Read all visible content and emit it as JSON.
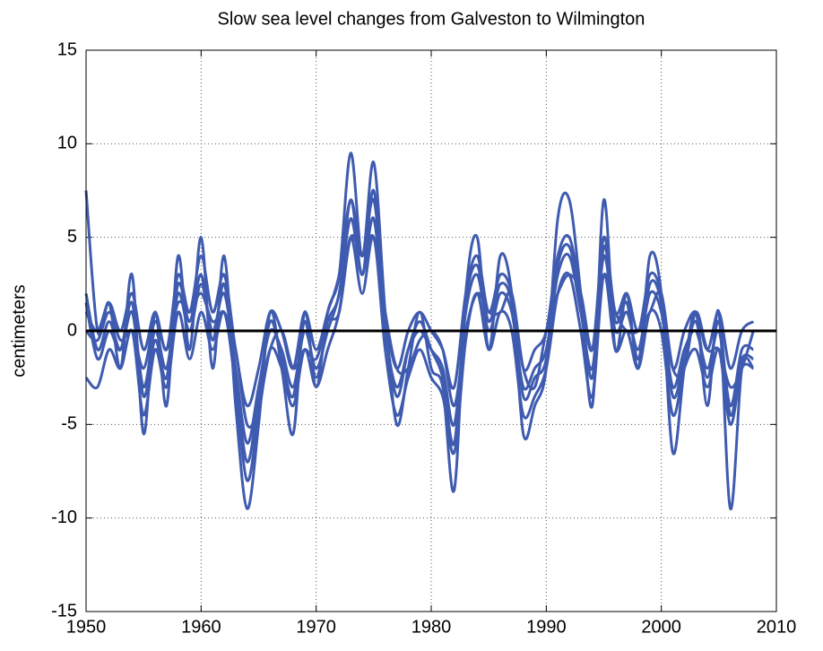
{
  "chart_data": {
    "type": "line",
    "title": "Slow sea level changes from Galveston to Wilmington",
    "y_label": "centimeters",
    "x": [
      1950,
      1951,
      1952,
      1953,
      1954,
      1955,
      1956,
      1957,
      1958,
      1959,
      1960,
      1961,
      1962,
      1963,
      1964,
      1965,
      1966,
      1967,
      1968,
      1969,
      1970,
      1971,
      1972,
      1973,
      1974,
      1975,
      1976,
      1977,
      1978,
      1979,
      1980,
      1981,
      1982,
      1983,
      1984,
      1985,
      1986,
      1987,
      1988,
      1989,
      1990,
      1991,
      1992,
      1993,
      1994,
      1995,
      1996,
      1997,
      1998,
      1999,
      2000,
      2001,
      2002,
      2003,
      2004,
      2005,
      2006,
      2007,
      2008
    ],
    "series": [
      {
        "color": "#3f5bb0",
        "values": [
          2,
          -1,
          0.5,
          -1,
          1,
          -3,
          0,
          -2,
          2,
          0,
          2.5,
          0,
          2,
          -2,
          -6,
          -3,
          0,
          -1,
          -3,
          0,
          -2,
          0,
          2,
          6,
          3,
          6,
          0,
          -3,
          -1,
          0,
          -1,
          -2,
          -5,
          1,
          3,
          0,
          2,
          1,
          -3,
          -2,
          -1,
          3,
          4,
          1,
          -2,
          4,
          0,
          1,
          -1,
          2,
          1,
          -3,
          -1,
          0,
          -2,
          0,
          -4,
          -1,
          -1
        ]
      },
      {
        "color": "#3f5bb0",
        "values": [
          7.5,
          0,
          1.5,
          -2,
          3,
          -5.5,
          1,
          -4,
          4,
          -1,
          5,
          -2,
          4,
          -4,
          -9.5,
          -5,
          1,
          -2,
          -5.5,
          1,
          -3,
          1,
          3,
          9.5,
          4,
          9,
          1,
          -5,
          -2,
          1,
          -2,
          -3,
          -8.5,
          2,
          5,
          -1,
          4,
          2,
          -5.5,
          -4,
          -2,
          6,
          7,
          2,
          -4,
          7,
          -1,
          2,
          -2,
          4,
          2,
          -6.5,
          -2,
          1,
          -4,
          1,
          -9.5,
          -2,
          -2
        ]
      },
      {
        "color": "#3f5bb0",
        "values": [
          1,
          0,
          1.5,
          0,
          2,
          -1,
          1,
          -1,
          3,
          1,
          4,
          1,
          3,
          -1,
          -4,
          -2,
          1,
          0,
          -2,
          1,
          -1,
          1,
          3,
          7,
          4,
          7,
          1,
          -2,
          0,
          1,
          0,
          -1,
          -3,
          2,
          4,
          1,
          3,
          2,
          -2,
          -1,
          0,
          4,
          5,
          2,
          -1,
          5,
          1,
          2,
          0,
          3,
          2,
          -2,
          0,
          1,
          -1,
          1,
          -2,
          0,
          0.5
        ]
      },
      {
        "color": "#3f5bb0",
        "values": [
          -2.5,
          -3,
          -1,
          -2,
          0,
          -4.5,
          -1,
          -3,
          1,
          -1.5,
          1,
          -1,
          1,
          -3,
          -8,
          -4.5,
          -1,
          -2,
          -4,
          -1,
          -3,
          -1,
          1,
          5,
          2,
          5,
          -1,
          -4.5,
          -2.5,
          -1,
          -2.5,
          -3.5,
          -6.5,
          -0.5,
          2,
          -1,
          1,
          0,
          -4.5,
          -3.5,
          -2,
          2,
          3,
          0,
          -3.5,
          3,
          -1,
          0,
          -2,
          1,
          0,
          -4.5,
          -2,
          -1,
          -3,
          -1,
          -5,
          -2,
          -2
        ]
      },
      {
        "color": "#3f5bb0",
        "values": [
          0,
          -0.5,
          1,
          -0.5,
          0,
          -2,
          0.5,
          -1,
          1.5,
          1,
          2,
          0.5,
          1,
          -1,
          -5,
          -4,
          -1,
          0,
          -2,
          -1,
          -1.5,
          0.5,
          1,
          5,
          4,
          5,
          1,
          -2,
          -2,
          -0.5,
          0,
          -1,
          -4,
          0,
          2,
          1,
          1,
          2,
          -2,
          -3,
          0,
          2,
          3,
          2,
          -1,
          3,
          1,
          0,
          0,
          1,
          2,
          -2,
          -2,
          1,
          -1,
          -1,
          -3,
          -2,
          0
        ]
      },
      {
        "color": "#3f5bb0",
        "values": [
          1.5,
          -1.5,
          0,
          -1,
          1.5,
          -3.5,
          -0.5,
          -2.5,
          2.5,
          0.5,
          3,
          -0.5,
          2.5,
          -2.5,
          -7,
          -3.5,
          0.5,
          -1.5,
          -3.5,
          0.5,
          -2.5,
          0.5,
          2,
          7,
          3,
          7.5,
          0.5,
          -3.5,
          -1,
          0.5,
          -1,
          -2.5,
          -6,
          1.5,
          3.5,
          0.5,
          2.5,
          1.5,
          -3.5,
          -2.5,
          -1.5,
          3.5,
          4.5,
          1.5,
          -2.5,
          4.5,
          0.5,
          1.5,
          -1.5,
          2.5,
          1.5,
          -3.5,
          -1.5,
          0.5,
          -2.5,
          0.5,
          -4.5,
          -1.5,
          -1.5
        ]
      }
    ],
    "hlines": [
      0
    ],
    "xlim": [
      1950,
      2010
    ],
    "xticks": [
      1950,
      1960,
      1970,
      1980,
      1990,
      2000,
      2010
    ],
    "ylim": [
      -15,
      15
    ],
    "yticks": [
      -15,
      -10,
      -5,
      0,
      5,
      10,
      15
    ],
    "grid": true
  }
}
